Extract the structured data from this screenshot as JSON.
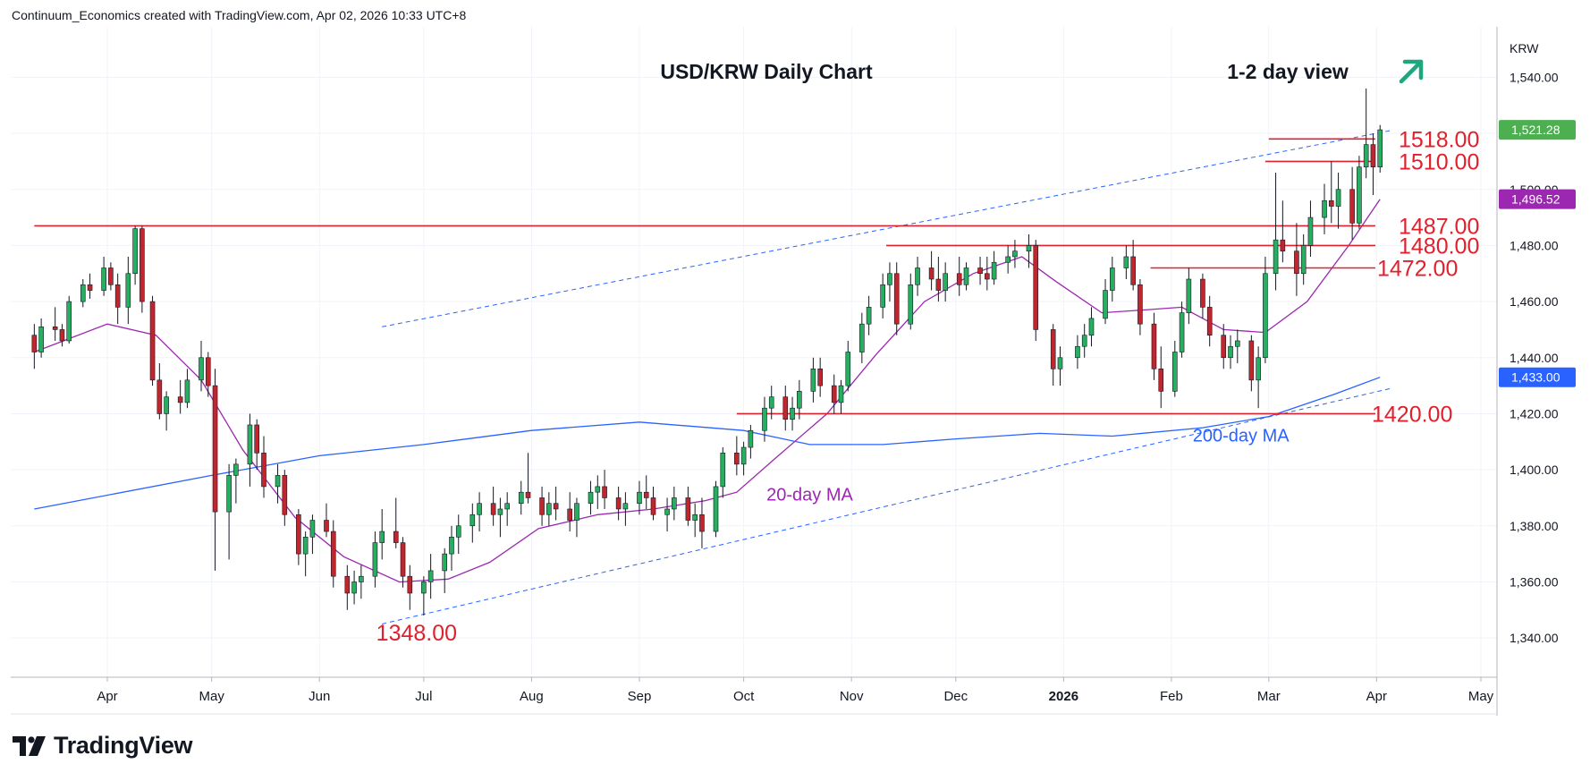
{
  "header": {
    "attribution": "Continuum_Economics created with TradingView.com, Apr 02, 2026 10:33 UTC+8"
  },
  "chart_data": {
    "type": "candlestick",
    "title": "USD/KRW Daily Chart",
    "subtitle": "1-2 day view",
    "view_arrow": "up-right-arrow-icon",
    "currency_label": "KRW",
    "x_ticks": [
      "Apr",
      "May",
      "Jun",
      "Jul",
      "Aug",
      "Sep",
      "Oct",
      "Nov",
      "Dec",
      "2026",
      "Feb",
      "Mar",
      "Apr",
      "May"
    ],
    "y_ticks": [
      "1,540.00",
      "1,520.00",
      "1,500.00",
      "1,480.00",
      "1,460.00",
      "1,440.00",
      "1,420.00",
      "1,400.00",
      "1,380.00",
      "1,360.00",
      "1,340.00"
    ],
    "ylim": [
      1326,
      1558
    ],
    "grid": true,
    "price_tags": [
      {
        "label": "1,521.28",
        "value": 1521.28,
        "color": "#4caf50"
      },
      {
        "label": "1,496.52",
        "value": 1496.52,
        "color": "#9c27b0"
      },
      {
        "label": "1,433.00",
        "value": 1433.0,
        "color": "#2962ff"
      }
    ],
    "levels": [
      {
        "label": "1518.00",
        "value": 1518,
        "from": "2026-03-01"
      },
      {
        "label": "1510.00",
        "value": 1510,
        "from": "2026-02-28"
      },
      {
        "label": "1487.00",
        "value": 1487,
        "from": "2025-03-11"
      },
      {
        "label": "1480.00",
        "value": 1480,
        "from": "2025-11-11"
      },
      {
        "label": "1472.00",
        "value": 1472,
        "from": "2026-01-26"
      },
      {
        "label": "1420.00",
        "value": 1420,
        "from": "2025-09-29"
      }
    ],
    "annotations": [
      {
        "text": "1348.00",
        "value": 1348,
        "date": "2025-07-01"
      },
      {
        "text": "20-day MA",
        "date": "2025-10-20",
        "value": 1391,
        "color": "#9c27b0"
      },
      {
        "text": "200-day MA",
        "date": "2026-02-21",
        "value": 1412,
        "color": "#2962ff"
      }
    ],
    "channel": {
      "lower": {
        "start": [
          "2025-06-19",
          1345
        ],
        "end": [
          "2026-04-05",
          1429
        ]
      },
      "upper": {
        "start": [
          "2025-06-19",
          1451
        ],
        "end": [
          "2026-04-05",
          1521
        ]
      }
    },
    "series": [
      {
        "name": "20-day MA",
        "color": "#9c27b0",
        "points": [
          [
            "2025-03-11",
            1442
          ],
          [
            "2025-04-01",
            1452
          ],
          [
            "2025-04-15",
            1448
          ],
          [
            "2025-04-28",
            1432
          ],
          [
            "2025-05-10",
            1407
          ],
          [
            "2025-05-25",
            1383
          ],
          [
            "2025-06-08",
            1369
          ],
          [
            "2025-06-24",
            1360
          ],
          [
            "2025-07-08",
            1361
          ],
          [
            "2025-07-20",
            1367
          ],
          [
            "2025-08-03",
            1379
          ],
          [
            "2025-08-20",
            1384
          ],
          [
            "2025-09-05",
            1386
          ],
          [
            "2025-09-20",
            1389
          ],
          [
            "2025-09-29",
            1392
          ],
          [
            "2025-10-10",
            1404
          ],
          [
            "2025-10-25",
            1420
          ],
          [
            "2025-11-08",
            1441
          ],
          [
            "2025-11-22",
            1460
          ],
          [
            "2025-12-06",
            1470
          ],
          [
            "2025-12-20",
            1476
          ],
          [
            "2025-12-30",
            1467
          ],
          [
            "2026-01-12",
            1456
          ],
          [
            "2026-01-24",
            1457
          ],
          [
            "2026-02-04",
            1458
          ],
          [
            "2026-02-16",
            1450
          ],
          [
            "2026-02-28",
            1449
          ],
          [
            "2026-03-12",
            1460
          ],
          [
            "2026-03-24",
            1480
          ],
          [
            "2026-04-02",
            1496.5
          ]
        ]
      },
      {
        "name": "200-day MA",
        "color": "#2962ff",
        "points": [
          [
            "2025-03-11",
            1386
          ],
          [
            "2025-05-01",
            1398
          ],
          [
            "2025-06-01",
            1405
          ],
          [
            "2025-07-01",
            1409
          ],
          [
            "2025-08-01",
            1414
          ],
          [
            "2025-09-01",
            1417
          ],
          [
            "2025-10-01",
            1414
          ],
          [
            "2025-10-20",
            1409
          ],
          [
            "2025-11-10",
            1409
          ],
          [
            "2025-12-01",
            1411
          ],
          [
            "2025-12-25",
            1413
          ],
          [
            "2026-01-15",
            1412
          ],
          [
            "2026-02-10",
            1415
          ],
          [
            "2026-03-01",
            1419
          ],
          [
            "2026-03-20",
            1427
          ],
          [
            "2026-04-02",
            1433
          ]
        ]
      }
    ],
    "candles": [
      [
        "2025-03-11",
        1448,
        1452,
        1436,
        1442
      ],
      [
        "2025-03-13",
        1442,
        1454,
        1440,
        1451
      ],
      [
        "2025-03-17",
        1451,
        1458,
        1446,
        1450
      ],
      [
        "2025-03-19",
        1450,
        1452,
        1444,
        1446
      ],
      [
        "2025-03-21",
        1446,
        1462,
        1445,
        1460
      ],
      [
        "2025-03-25",
        1460,
        1468,
        1458,
        1466
      ],
      [
        "2025-03-27",
        1466,
        1470,
        1461,
        1464
      ],
      [
        "2025-03-31",
        1464,
        1476,
        1462,
        1472
      ],
      [
        "2025-04-02",
        1472,
        1474,
        1464,
        1466
      ],
      [
        "2025-04-04",
        1466,
        1470,
        1452,
        1458
      ],
      [
        "2025-04-07",
        1458,
        1476,
        1452,
        1470
      ],
      [
        "2025-04-09",
        1470,
        1487,
        1466,
        1486
      ],
      [
        "2025-04-11",
        1486,
        1487,
        1456,
        1460
      ],
      [
        "2025-04-14",
        1460,
        1462,
        1430,
        1432
      ],
      [
        "2025-04-16",
        1432,
        1438,
        1418,
        1420
      ],
      [
        "2025-04-18",
        1420,
        1428,
        1414,
        1426
      ],
      [
        "2025-04-22",
        1426,
        1432,
        1420,
        1424
      ],
      [
        "2025-04-24",
        1424,
        1436,
        1422,
        1432
      ],
      [
        "2025-04-28",
        1432,
        1446,
        1428,
        1440
      ],
      [
        "2025-04-30",
        1440,
        1442,
        1426,
        1430
      ],
      [
        "2025-05-02",
        1430,
        1436,
        1364,
        1385
      ],
      [
        "2025-05-06",
        1385,
        1402,
        1368,
        1398
      ],
      [
        "2025-05-08",
        1398,
        1404,
        1388,
        1402
      ],
      [
        "2025-05-12",
        1402,
        1420,
        1394,
        1416
      ],
      [
        "2025-05-14",
        1416,
        1418,
        1400,
        1406
      ],
      [
        "2025-05-16",
        1406,
        1412,
        1390,
        1394
      ],
      [
        "2025-05-20",
        1394,
        1402,
        1388,
        1398
      ],
      [
        "2025-05-22",
        1398,
        1400,
        1380,
        1384
      ],
      [
        "2025-05-26",
        1384,
        1386,
        1366,
        1370
      ],
      [
        "2025-05-28",
        1370,
        1378,
        1362,
        1376
      ],
      [
        "2025-05-30",
        1376,
        1384,
        1370,
        1382
      ],
      [
        "2025-06-03",
        1382,
        1388,
        1376,
        1378
      ],
      [
        "2025-06-05",
        1378,
        1382,
        1358,
        1362
      ],
      [
        "2025-06-09",
        1362,
        1366,
        1350,
        1356
      ],
      [
        "2025-06-11",
        1356,
        1364,
        1352,
        1360
      ],
      [
        "2025-06-13",
        1360,
        1366,
        1354,
        1362
      ],
      [
        "2025-06-17",
        1362,
        1378,
        1358,
        1374
      ],
      [
        "2025-06-19",
        1374,
        1386,
        1368,
        1378
      ],
      [
        "2025-06-23",
        1378,
        1390,
        1372,
        1374
      ],
      [
        "2025-06-25",
        1374,
        1376,
        1358,
        1362
      ],
      [
        "2025-06-27",
        1362,
        1366,
        1350,
        1356
      ],
      [
        "2025-07-01",
        1356,
        1362,
        1348,
        1360
      ],
      [
        "2025-07-03",
        1360,
        1370,
        1354,
        1364
      ],
      [
        "2025-07-07",
        1364,
        1372,
        1356,
        1370
      ],
      [
        "2025-07-09",
        1370,
        1380,
        1364,
        1376
      ],
      [
        "2025-07-11",
        1376,
        1384,
        1370,
        1380
      ],
      [
        "2025-07-15",
        1380,
        1388,
        1374,
        1384
      ],
      [
        "2025-07-17",
        1384,
        1392,
        1378,
        1388
      ],
      [
        "2025-07-21",
        1388,
        1394,
        1380,
        1384
      ],
      [
        "2025-07-23",
        1384,
        1390,
        1376,
        1386
      ],
      [
        "2025-07-25",
        1386,
        1392,
        1380,
        1388
      ],
      [
        "2025-07-29",
        1388,
        1396,
        1384,
        1392
      ],
      [
        "2025-07-31",
        1392,
        1406,
        1388,
        1390
      ],
      [
        "2025-08-04",
        1390,
        1394,
        1380,
        1384
      ],
      [
        "2025-08-06",
        1384,
        1392,
        1380,
        1388
      ],
      [
        "2025-08-08",
        1388,
        1394,
        1382,
        1386
      ],
      [
        "2025-08-12",
        1386,
        1392,
        1378,
        1382
      ],
      [
        "2025-08-14",
        1382,
        1390,
        1376,
        1388
      ],
      [
        "2025-08-18",
        1388,
        1396,
        1384,
        1392
      ],
      [
        "2025-08-20",
        1392,
        1398,
        1386,
        1394
      ],
      [
        "2025-08-22",
        1394,
        1400,
        1386,
        1390
      ],
      [
        "2025-08-26",
        1390,
        1394,
        1382,
        1386
      ],
      [
        "2025-08-28",
        1386,
        1392,
        1380,
        1388
      ],
      [
        "2025-09-01",
        1388,
        1396,
        1384,
        1392
      ],
      [
        "2025-09-03",
        1392,
        1398,
        1386,
        1390
      ],
      [
        "2025-09-05",
        1390,
        1394,
        1382,
        1384
      ],
      [
        "2025-09-09",
        1384,
        1390,
        1378,
        1386
      ],
      [
        "2025-09-11",
        1386,
        1394,
        1382,
        1390
      ],
      [
        "2025-09-15",
        1390,
        1394,
        1380,
        1382
      ],
      [
        "2025-09-17",
        1382,
        1388,
        1376,
        1384
      ],
      [
        "2025-09-19",
        1384,
        1390,
        1372,
        1378
      ],
      [
        "2025-09-23",
        1378,
        1396,
        1376,
        1394
      ],
      [
        "2025-09-25",
        1394,
        1408,
        1390,
        1406
      ],
      [
        "2025-09-29",
        1406,
        1412,
        1398,
        1402
      ],
      [
        "2025-10-01",
        1402,
        1410,
        1398,
        1408
      ],
      [
        "2025-10-03",
        1408,
        1416,
        1404,
        1414
      ],
      [
        "2025-10-07",
        1414,
        1426,
        1410,
        1422
      ],
      [
        "2025-10-09",
        1422,
        1430,
        1418,
        1426
      ],
      [
        "2025-10-13",
        1426,
        1430,
        1414,
        1418
      ],
      [
        "2025-10-15",
        1418,
        1426,
        1414,
        1422
      ],
      [
        "2025-10-17",
        1422,
        1432,
        1418,
        1428
      ],
      [
        "2025-10-21",
        1428,
        1440,
        1424,
        1436
      ],
      [
        "2025-10-23",
        1436,
        1440,
        1426,
        1430
      ],
      [
        "2025-10-27",
        1430,
        1434,
        1420,
        1424
      ],
      [
        "2025-10-29",
        1424,
        1432,
        1420,
        1430
      ],
      [
        "2025-10-31",
        1430,
        1446,
        1428,
        1442
      ],
      [
        "2025-11-04",
        1442,
        1456,
        1438,
        1452
      ],
      [
        "2025-11-06",
        1452,
        1462,
        1448,
        1458
      ],
      [
        "2025-11-10",
        1458,
        1470,
        1454,
        1466
      ],
      [
        "2025-11-12",
        1466,
        1474,
        1460,
        1470
      ],
      [
        "2025-11-14",
        1470,
        1474,
        1448,
        1452
      ],
      [
        "2025-11-18",
        1452,
        1470,
        1450,
        1466
      ],
      [
        "2025-11-20",
        1466,
        1476,
        1462,
        1472
      ],
      [
        "2025-11-24",
        1472,
        1478,
        1464,
        1468
      ],
      [
        "2025-11-26",
        1468,
        1476,
        1460,
        1464
      ],
      [
        "2025-11-28",
        1464,
        1474,
        1460,
        1470
      ],
      [
        "2025-12-02",
        1470,
        1476,
        1462,
        1466
      ],
      [
        "2025-12-04",
        1466,
        1474,
        1464,
        1472
      ],
      [
        "2025-12-08",
        1472,
        1476,
        1466,
        1470
      ],
      [
        "2025-12-10",
        1470,
        1476,
        1464,
        1468
      ],
      [
        "2025-12-12",
        1468,
        1478,
        1466,
        1474
      ],
      [
        "2025-12-16",
        1474,
        1480,
        1470,
        1476
      ],
      [
        "2025-12-18",
        1476,
        1482,
        1472,
        1478
      ],
      [
        "2025-12-22",
        1478,
        1484,
        1472,
        1480
      ],
      [
        "2025-12-24",
        1480,
        1482,
        1446,
        1450
      ],
      [
        "2025-12-29",
        1450,
        1452,
        1430,
        1436
      ],
      [
        "2025-12-31",
        1436,
        1444,
        1430,
        1440
      ],
      [
        "2026-01-05",
        1440,
        1448,
        1436,
        1444
      ],
      [
        "2026-01-07",
        1444,
        1452,
        1440,
        1448
      ],
      [
        "2026-01-09",
        1448,
        1458,
        1444,
        1454
      ],
      [
        "2026-01-13",
        1454,
        1468,
        1452,
        1464
      ],
      [
        "2026-01-15",
        1464,
        1476,
        1460,
        1472
      ],
      [
        "2026-01-19",
        1472,
        1480,
        1468,
        1476
      ],
      [
        "2026-01-21",
        1476,
        1482,
        1464,
        1466
      ],
      [
        "2026-01-23",
        1466,
        1468,
        1448,
        1452
      ],
      [
        "2026-01-27",
        1452,
        1456,
        1432,
        1436
      ],
      [
        "2026-01-29",
        1436,
        1444,
        1422,
        1428
      ],
      [
        "2026-02-02",
        1428,
        1446,
        1426,
        1442
      ],
      [
        "2026-02-04",
        1442,
        1460,
        1440,
        1456
      ],
      [
        "2026-02-06",
        1456,
        1472,
        1452,
        1468
      ],
      [
        "2026-02-10",
        1468,
        1470,
        1454,
        1458
      ],
      [
        "2026-02-12",
        1458,
        1462,
        1444,
        1448
      ],
      [
        "2026-02-16",
        1448,
        1452,
        1436,
        1440
      ],
      [
        "2026-02-18",
        1440,
        1448,
        1436,
        1444
      ],
      [
        "2026-02-20",
        1444,
        1450,
        1438,
        1446
      ],
      [
        "2026-02-24",
        1446,
        1448,
        1428,
        1432
      ],
      [
        "2026-02-26",
        1432,
        1444,
        1422,
        1440
      ],
      [
        "2026-02-28",
        1440,
        1476,
        1438,
        1470
      ],
      [
        "2026-03-03",
        1470,
        1506,
        1464,
        1482
      ],
      [
        "2026-03-05",
        1482,
        1496,
        1474,
        1478
      ],
      [
        "2026-03-09",
        1478,
        1488,
        1462,
        1470
      ],
      [
        "2026-03-11",
        1470,
        1484,
        1466,
        1480
      ],
      [
        "2026-03-13",
        1480,
        1496,
        1476,
        1490
      ],
      [
        "2026-03-17",
        1490,
        1502,
        1484,
        1496
      ],
      [
        "2026-03-19",
        1496,
        1510,
        1488,
        1494
      ],
      [
        "2026-03-21",
        1494,
        1506,
        1486,
        1500
      ],
      [
        "2026-03-25",
        1500,
        1508,
        1482,
        1488
      ],
      [
        "2026-03-27",
        1488,
        1512,
        1486,
        1508
      ],
      [
        "2026-03-29",
        1508,
        1536,
        1504,
        1516
      ],
      [
        "2026-03-31",
        1516,
        1520,
        1498,
        1508
      ],
      [
        "2026-04-02",
        1508,
        1523,
        1506,
        1521.28
      ]
    ]
  }
}
